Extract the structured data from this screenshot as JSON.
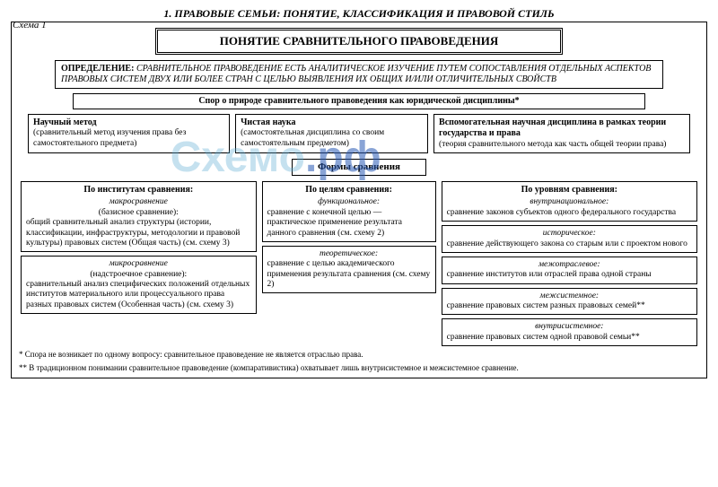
{
  "title": "1. ПРАВОВЫЕ СЕМЬИ: ПОНЯТИЕ, КЛАССИФИКАЦИЯ И ПРАВОВОЙ СТИЛЬ",
  "scheme_label": "Схема 1",
  "main_heading": "ПОНЯТИЕ СРАВНИТЕЛЬНОГО ПРАВОВЕДЕНИЯ",
  "definition_label": "ОПРЕДЕЛЕНИЕ:",
  "definition_text": "СРАВНИТЕЛЬНОЕ ПРАВОВЕДЕНИЕ ЕСТЬ АНАЛИТИЧЕСКОЕ ИЗУЧЕНИЕ ПУТЕМ СОПОСТАВЛЕНИЯ ОТДЕЛЬНЫХ АСПЕКТОВ ПРАВОВЫХ СИСТЕМ ДВУХ ИЛИ БОЛЕЕ СТРАН С ЦЕЛЬЮ ВЫЯВЛЕНИЯ ИХ ОБЩИХ И/ИЛИ ОТЛИЧИТЕЛЬНЫХ СВОЙСТВ",
  "dispute_title": "Спор о природе сравнительного правоведения как юридической дисциплины*",
  "triad": {
    "a_title": "Научный метод",
    "a_text": "(сравнительный метод изучения права без самостоятельного предмета)",
    "b_title": "Чистая наука",
    "b_text": "(самостоятельная дисциплина со своим самостоятельным предметом)",
    "c_title": "Вспомогательная научная дисциплина в рамках теории государства и права",
    "c_text": "(теория сравнительного метода как часть общей теории права)"
  },
  "forms_title": "Формы сравнения",
  "col1": {
    "header": "По институтам сравнения:",
    "b1_sub": "макросравнение",
    "b1_par": "(базисное сравнение):",
    "b1_text": "общий сравнительный анализ структуры (истории, классификации, инфраструктуры, методологии и правовой культуры) правовых систем (Общая часть) (см. схему 3)",
    "b2_sub": "микросравнение",
    "b2_par": "(надстроечное сравнение):",
    "b2_text": "сравнительный анализ специфических положений отдельных институтов материального или процессуального права разных правовых систем (Особенная часть) (см. схему 3)"
  },
  "col2": {
    "header": "По целям сравнения:",
    "b1_sub": "функциональное:",
    "b1_text": "сравнение с конечной целью — практическое применение результата данного сравнения (см. схему 2)",
    "b2_sub": "теоретическое:",
    "b2_text": "сравнение с целью академического применения результата сравнения (см. схему 2)"
  },
  "col3": {
    "header": "По уровням сравнения:",
    "r1_sub": "внутринациональное:",
    "r1_text": "сравнение законов субъектов одного федерального государства",
    "r2_sub": "историческое:",
    "r2_text": "сравнение действующего закона со старым или с проектом нового",
    "r3_sub": "межотраслевое:",
    "r3_text": "сравнение институтов или отраслей права одной страны",
    "r4_sub": "межсистемное:",
    "r4_text": "сравнение правовых систем разных правовых семей**",
    "r5_sub": "внутрисистемное:",
    "r5_text": "сравнение правовых систем одной правовой семьи**"
  },
  "footnote1": "* Спора не возникает по одному вопросу: сравнительное правоведение не является отраслью права.",
  "footnote2": "** В традиционном понимании сравнительное правоведение (компаративистика) охватывает лишь внутрисистемное и межсистемное сравнение.",
  "watermark_a": "Схемо",
  "watermark_b": ".рф"
}
